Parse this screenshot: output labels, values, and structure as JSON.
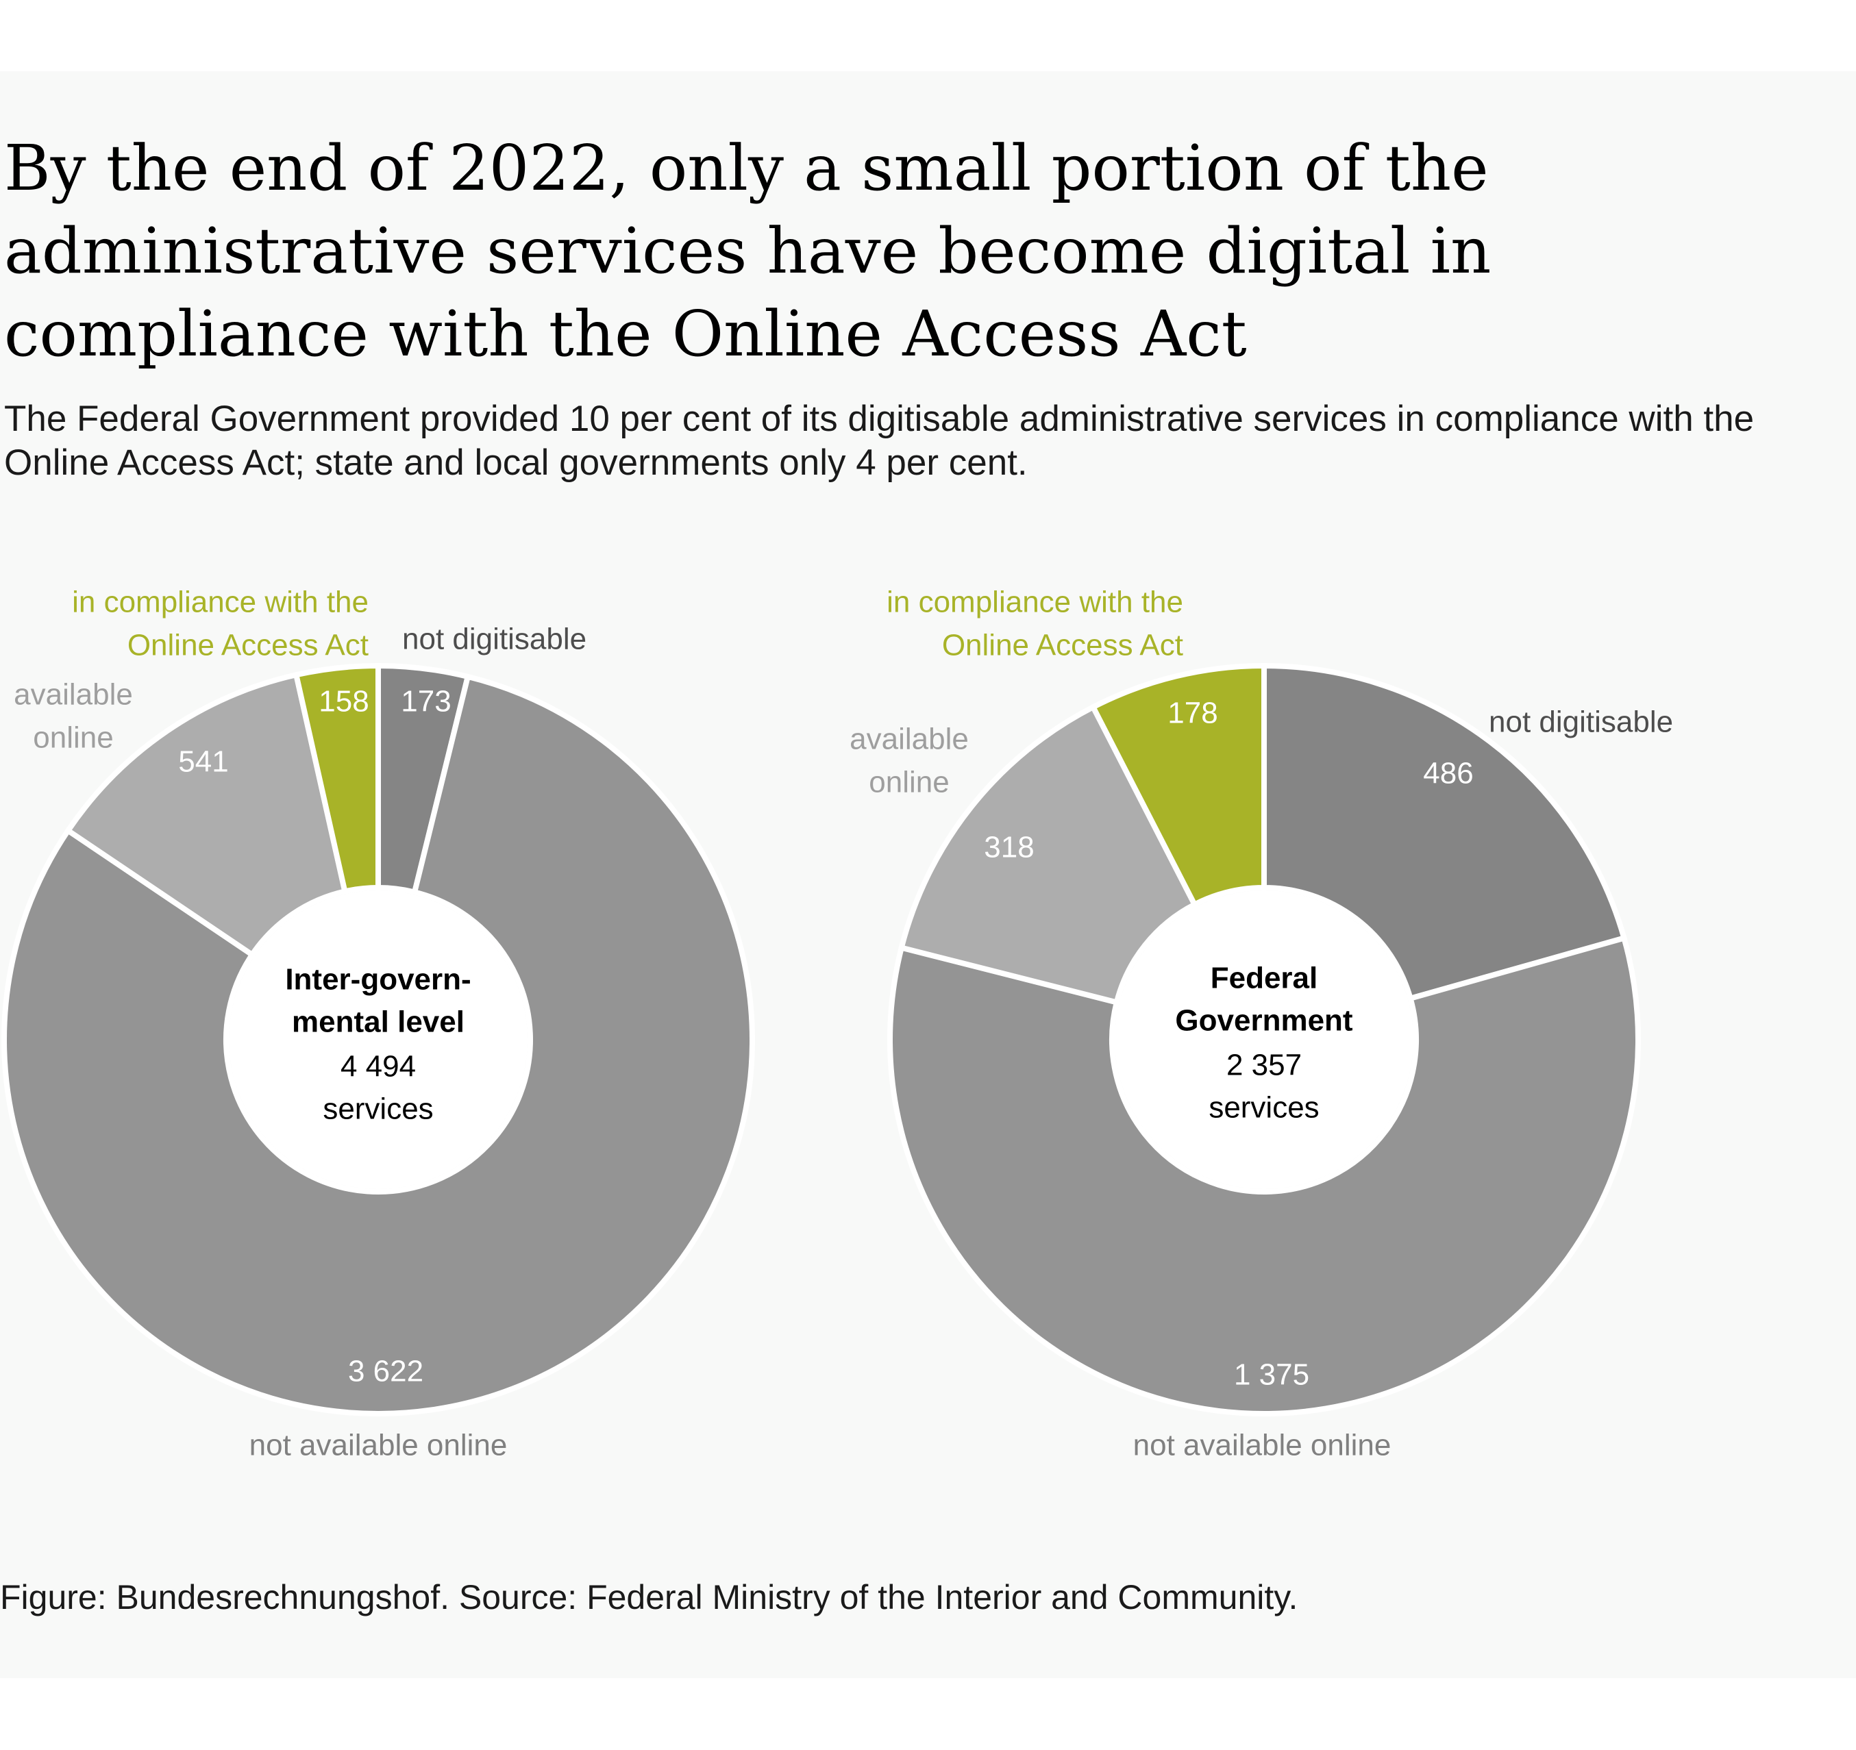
{
  "title": "By the end of 2022, only a small portion of the administrative services have become digital in compliance with the Online Access Act",
  "subtitle": "The Federal Government provided 10 per cent of its digitisable administrative services in compliance with the Online Access Act; state and local governments only 4 per cent.",
  "footer": "Figure: Bundesrechnungshof. Source: Federal Ministry of the Interior and Community.",
  "colors": {
    "in_compliance": "#a8b328",
    "not_digitisable": "#858585",
    "not_available_online": "#949494",
    "available_online": "#adadad",
    "label_compliance": "#a8b328",
    "label_available": "#9e9e9e",
    "label_not_available": "#808080",
    "label_not_digitisable": "#4d4d4d"
  },
  "chart_data": [
    {
      "type": "pie",
      "title": "Inter-govern- mental level",
      "center_label": [
        "Inter-govern-",
        "mental level"
      ],
      "total": "4 494",
      "total_unit": "services",
      "slices": [
        {
          "key": "not_digitisable",
          "value": 173,
          "label": "173",
          "category": "not digitisable"
        },
        {
          "key": "not_available_online",
          "value": 3622,
          "label": "3 622",
          "category": "not available online"
        },
        {
          "key": "available_online",
          "value": 541,
          "label": "541",
          "category": "available online"
        },
        {
          "key": "in_compliance",
          "value": 158,
          "label": "158",
          "category": "in compliance with the Online Access Act"
        }
      ]
    },
    {
      "type": "pie",
      "title": "Federal Government",
      "center_label": [
        "Federal",
        "Government"
      ],
      "total": "2 357",
      "total_unit": "services",
      "slices": [
        {
          "key": "not_digitisable",
          "value": 486,
          "label": "486",
          "category": "not digitisable"
        },
        {
          "key": "not_available_online",
          "value": 1375,
          "label": "1 375",
          "category": "not available online"
        },
        {
          "key": "available_online",
          "value": 318,
          "label": "318",
          "category": "available online"
        },
        {
          "key": "in_compliance",
          "value": 178,
          "label": "178",
          "category": "in compliance with the Online Access Act"
        }
      ]
    }
  ],
  "category_labels": {
    "compliance": [
      "in compliance with the",
      "Online Access Act"
    ],
    "available": [
      "available",
      "online"
    ],
    "not_available": "not available online",
    "not_digitisable": "not digitisable"
  }
}
